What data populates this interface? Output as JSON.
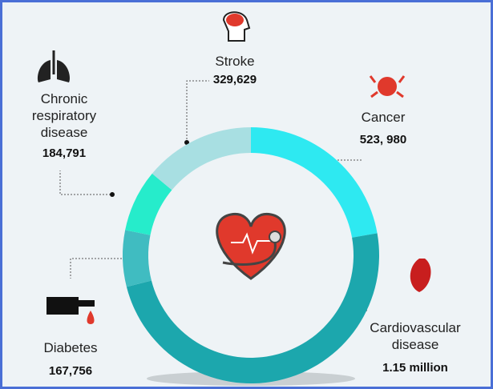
{
  "chart_data": {
    "type": "donut",
    "categories": [
      "Cancer",
      "Cardiovascular disease",
      "Diabetes",
      "Chronic respiratory disease",
      "Stroke"
    ],
    "values": [
      523980,
      1150000,
      167756,
      184791,
      329629
    ],
    "value_labels": [
      "523, 980",
      "1.15 million",
      "167,756",
      "184,791",
      "329,629"
    ],
    "colors": [
      "#2ee9f1",
      "#1ca7ad",
      "#40bcc1",
      "#26eccb",
      "#a8dfe2"
    ]
  }
}
